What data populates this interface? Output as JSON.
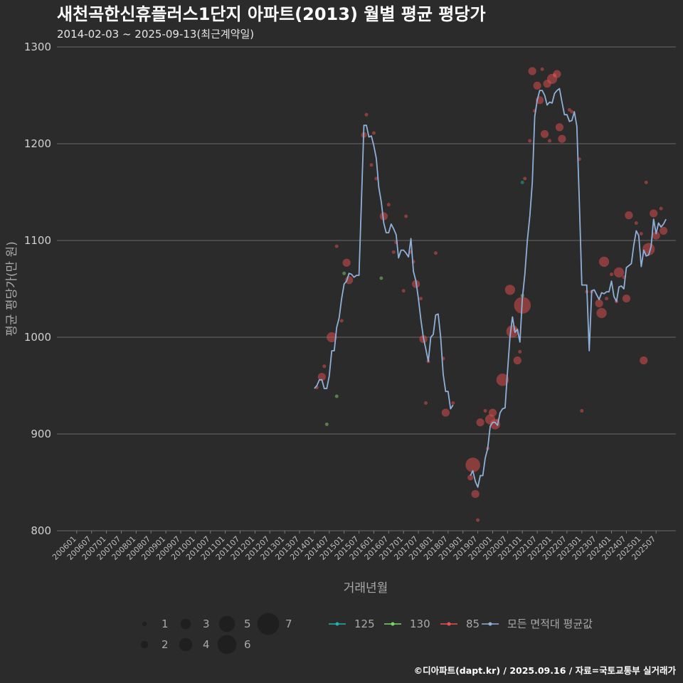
{
  "chart_data": {
    "type": "line",
    "title": "새천곡한신휴플러스1단지 아파트(2013) 월별 평균 평당가",
    "subtitle": "2014-02-03 ~ 2025-09-13(최근계약일)",
    "xlabel": "거래년월",
    "ylabel": "평균 평당가(만 원)",
    "ylim": [
      800,
      1300
    ],
    "yticks": [
      "800",
      "900",
      "1000",
      "1100",
      "1200",
      "1300"
    ],
    "xlim_months": [
      "2006-01",
      "2025-12"
    ],
    "xticks": [
      "200601",
      "200607",
      "200701",
      "200707",
      "200801",
      "200807",
      "200901",
      "200907",
      "201001",
      "201007",
      "201101",
      "201107",
      "201201",
      "201207",
      "201301",
      "201307",
      "201401",
      "201407",
      "201501",
      "201507",
      "201601",
      "201607",
      "201701",
      "201707",
      "201801",
      "201807",
      "201901",
      "201907",
      "202001",
      "202007",
      "202101",
      "202107",
      "202201",
      "202207",
      "202301",
      "202307",
      "202401",
      "202407",
      "202501",
      "202507"
    ],
    "grid": "horizontal",
    "legend_position": "bottom",
    "size_legend": [
      "1",
      "2",
      "3",
      "4",
      "5",
      "6",
      "7"
    ],
    "color_legend": [
      {
        "name": "125",
        "color": "#20b2aa"
      },
      {
        "name": "130",
        "color": "#7ed36a"
      },
      {
        "name": "85",
        "color": "#e8524f"
      },
      {
        "name": "모든 면적대 평균값",
        "color": "#8fb0d8"
      }
    ],
    "series": [
      {
        "name": "모든 면적대 평균값",
        "color": "#8fb0d8",
        "points": [
          [
            "2014-01",
            947
          ],
          [
            "2014-02",
            950
          ],
          [
            "2014-03",
            956
          ],
          [
            "2014-04",
            956
          ],
          [
            "2014-05",
            947
          ],
          [
            "2014-06",
            947
          ],
          [
            "2014-07",
            960
          ],
          [
            "2014-08",
            986
          ],
          [
            "2014-09",
            986
          ],
          [
            "2014-10",
            1010
          ],
          [
            "2014-11",
            1020
          ],
          [
            "2014-12",
            1040
          ],
          [
            "2015-01",
            1055
          ],
          [
            "2015-02",
            1058
          ],
          [
            "2015-03",
            1066
          ],
          [
            "2015-04",
            1065
          ],
          [
            "2015-05",
            1062
          ],
          [
            "2015-06",
            1064
          ],
          [
            "2015-07",
            1064
          ],
          [
            "2015-08",
            1140
          ],
          [
            "2015-09",
            1219
          ],
          [
            "2015-10",
            1219
          ],
          [
            "2015-11",
            1207
          ],
          [
            "2015-12",
            1208
          ],
          [
            "2016-01",
            1198
          ],
          [
            "2016-02",
            1185
          ],
          [
            "2016-03",
            1155
          ],
          [
            "2016-04",
            1140
          ],
          [
            "2016-05",
            1118
          ],
          [
            "2016-06",
            1108
          ],
          [
            "2016-07",
            1108
          ],
          [
            "2016-08",
            1117
          ],
          [
            "2016-09",
            1112
          ],
          [
            "2016-10",
            1106
          ],
          [
            "2016-11",
            1082
          ],
          [
            "2016-12",
            1090
          ],
          [
            "2017-01",
            1090
          ],
          [
            "2017-02",
            1087
          ],
          [
            "2017-03",
            1083
          ],
          [
            "2017-04",
            1102
          ],
          [
            "2017-05",
            1068
          ],
          [
            "2017-06",
            1058
          ],
          [
            "2017-07",
            1040
          ],
          [
            "2017-08",
            1018
          ],
          [
            "2017-09",
            1000
          ],
          [
            "2017-10",
            988
          ],
          [
            "2017-11",
            975
          ],
          [
            "2017-12",
            1000
          ],
          [
            "2018-01",
            1003
          ],
          [
            "2018-02",
            1023
          ],
          [
            "2018-03",
            1024
          ],
          [
            "2018-04",
            1000
          ],
          [
            "2018-05",
            962
          ],
          [
            "2018-06",
            944
          ],
          [
            "2018-07",
            944
          ],
          [
            "2018-08",
            926
          ],
          [
            "2018-09",
            930
          ],
          [
            "2019-04",
            857
          ],
          [
            "2019-05",
            862
          ],
          [
            "2019-06",
            851
          ],
          [
            "2019-07",
            845
          ],
          [
            "2019-08",
            857
          ],
          [
            "2019-09",
            857
          ],
          [
            "2019-10",
            875
          ],
          [
            "2019-11",
            885
          ],
          [
            "2019-12",
            908
          ],
          [
            "2020-01",
            912
          ],
          [
            "2020-02",
            912
          ],
          [
            "2020-03",
            909
          ],
          [
            "2020-04",
            922
          ],
          [
            "2020-05",
            926
          ],
          [
            "2020-06",
            927
          ],
          [
            "2020-07",
            965
          ],
          [
            "2020-08",
            1000
          ],
          [
            "2020-09",
            1021
          ],
          [
            "2020-10",
            1005
          ],
          [
            "2020-11",
            1008
          ],
          [
            "2020-12",
            995
          ],
          [
            "2021-01",
            1040
          ],
          [
            "2021-02",
            1065
          ],
          [
            "2021-03",
            1100
          ],
          [
            "2021-04",
            1125
          ],
          [
            "2021-05",
            1160
          ],
          [
            "2021-06",
            1228
          ],
          [
            "2021-07",
            1245
          ],
          [
            "2021-08",
            1255
          ],
          [
            "2021-09",
            1255
          ],
          [
            "2021-10",
            1250
          ],
          [
            "2021-11",
            1240
          ],
          [
            "2021-12",
            1243
          ],
          [
            "2022-01",
            1242
          ],
          [
            "2022-02",
            1252
          ],
          [
            "2022-03",
            1255
          ],
          [
            "2022-04",
            1257
          ],
          [
            "2022-05",
            1243
          ],
          [
            "2022-06",
            1230
          ],
          [
            "2022-07",
            1230
          ],
          [
            "2022-08",
            1223
          ],
          [
            "2022-09",
            1224
          ],
          [
            "2022-10",
            1233
          ],
          [
            "2022-11",
            1218
          ],
          [
            "2022-12",
            1140
          ],
          [
            "2023-01",
            1054
          ],
          [
            "2023-02",
            1054
          ],
          [
            "2023-03",
            1054
          ],
          [
            "2023-04",
            986
          ],
          [
            "2023-05",
            1048
          ],
          [
            "2023-06",
            1049
          ],
          [
            "2023-07",
            1044
          ],
          [
            "2023-08",
            1039
          ],
          [
            "2023-09",
            1046
          ],
          [
            "2023-10",
            1045
          ],
          [
            "2023-11",
            1047
          ],
          [
            "2023-12",
            1047
          ],
          [
            "2024-01",
            1058
          ],
          [
            "2024-02",
            1042
          ],
          [
            "2024-03",
            1037
          ],
          [
            "2024-04",
            1052
          ],
          [
            "2024-05",
            1053
          ],
          [
            "2024-06",
            1050
          ],
          [
            "2024-07",
            1072
          ],
          [
            "2024-08",
            1074
          ],
          [
            "2024-09",
            1076
          ],
          [
            "2024-10",
            1095
          ],
          [
            "2024-11",
            1110
          ],
          [
            "2024-12",
            1105
          ],
          [
            "2025-01",
            1073
          ],
          [
            "2025-02",
            1090
          ],
          [
            "2025-03",
            1084
          ],
          [
            "2025-04",
            1085
          ],
          [
            "2025-05",
            1094
          ],
          [
            "2025-06",
            1122
          ],
          [
            "2025-07",
            1107
          ],
          [
            "2025-08",
            1118
          ],
          [
            "2025-09",
            1114
          ],
          [
            "2025-10",
            1117
          ],
          [
            "2025-11",
            1122
          ]
        ]
      }
    ],
    "bubbles": [
      {
        "x": "2014-02",
        "y": 948,
        "s": 1,
        "g": "85"
      },
      {
        "x": "2014-04",
        "y": 959,
        "s": 3,
        "g": "85"
      },
      {
        "x": "2014-05",
        "y": 970,
        "s": 1,
        "g": "85"
      },
      {
        "x": "2014-06",
        "y": 910,
        "s": 1,
        "g": "130"
      },
      {
        "x": "2014-08",
        "y": 1000,
        "s": 4,
        "g": "85"
      },
      {
        "x": "2014-10",
        "y": 939,
        "s": 1,
        "g": "130"
      },
      {
        "x": "2014-10",
        "y": 1094,
        "s": 1,
        "g": "85"
      },
      {
        "x": "2014-12",
        "y": 1017,
        "s": 1,
        "g": "85"
      },
      {
        "x": "2015-01",
        "y": 1066,
        "s": 1,
        "g": "130"
      },
      {
        "x": "2015-02",
        "y": 1077,
        "s": 3,
        "g": "85"
      },
      {
        "x": "2015-03",
        "y": 1059,
        "s": 3,
        "g": "85"
      },
      {
        "x": "2015-09",
        "y": 1209,
        "s": 2,
        "g": "85"
      },
      {
        "x": "2015-10",
        "y": 1230,
        "s": 1,
        "g": "85"
      },
      {
        "x": "2015-12",
        "y": 1178,
        "s": 1,
        "g": "85"
      },
      {
        "x": "2016-01",
        "y": 1211,
        "s": 1,
        "g": "85"
      },
      {
        "x": "2016-02",
        "y": 1164,
        "s": 1,
        "g": "85"
      },
      {
        "x": "2016-04",
        "y": 1061,
        "s": 1,
        "g": "130"
      },
      {
        "x": "2016-05",
        "y": 1125,
        "s": 3,
        "g": "85"
      },
      {
        "x": "2016-07",
        "y": 1137,
        "s": 1,
        "g": "85"
      },
      {
        "x": "2016-09",
        "y": 1088,
        "s": 1,
        "g": "85"
      },
      {
        "x": "2016-10",
        "y": 1098,
        "s": 1,
        "g": "85"
      },
      {
        "x": "2017-01",
        "y": 1048,
        "s": 1,
        "g": "85"
      },
      {
        "x": "2017-02",
        "y": 1125,
        "s": 1,
        "g": "85"
      },
      {
        "x": "2017-04",
        "y": 1088,
        "s": 1,
        "g": "85"
      },
      {
        "x": "2017-05",
        "y": 1078,
        "s": 1,
        "g": "85"
      },
      {
        "x": "2017-06",
        "y": 1055,
        "s": 3,
        "g": "85"
      },
      {
        "x": "2017-08",
        "y": 1040,
        "s": 1,
        "g": "85"
      },
      {
        "x": "2017-09",
        "y": 998,
        "s": 3,
        "g": "85"
      },
      {
        "x": "2017-10",
        "y": 932,
        "s": 1,
        "g": "85"
      },
      {
        "x": "2017-11",
        "y": 975,
        "s": 1,
        "g": "85"
      },
      {
        "x": "2018-02",
        "y": 1087,
        "s": 1,
        "g": "85"
      },
      {
        "x": "2018-05",
        "y": 978,
        "s": 1,
        "g": "85"
      },
      {
        "x": "2018-06",
        "y": 922,
        "s": 3,
        "g": "85"
      },
      {
        "x": "2018-09",
        "y": 932,
        "s": 1,
        "g": "85"
      },
      {
        "x": "2019-04",
        "y": 855,
        "s": 2,
        "g": "85"
      },
      {
        "x": "2019-05",
        "y": 868,
        "s": 6,
        "g": "85"
      },
      {
        "x": "2019-06",
        "y": 838,
        "s": 3,
        "g": "85"
      },
      {
        "x": "2019-07",
        "y": 811,
        "s": 1,
        "g": "85"
      },
      {
        "x": "2019-08",
        "y": 912,
        "s": 3,
        "g": "85"
      },
      {
        "x": "2019-10",
        "y": 924,
        "s": 1,
        "g": "85"
      },
      {
        "x": "2019-11",
        "y": 885,
        "s": 1,
        "g": "85"
      },
      {
        "x": "2019-12",
        "y": 915,
        "s": 4,
        "g": "85"
      },
      {
        "x": "2020-01",
        "y": 922,
        "s": 3,
        "g": "85"
      },
      {
        "x": "2020-02",
        "y": 910,
        "s": 4,
        "g": "85"
      },
      {
        "x": "2020-03",
        "y": 914,
        "s": 1,
        "g": "85"
      },
      {
        "x": "2020-05",
        "y": 956,
        "s": 5,
        "g": "85"
      },
      {
        "x": "2020-08",
        "y": 1049,
        "s": 4,
        "g": "85"
      },
      {
        "x": "2020-09",
        "y": 1006,
        "s": 5,
        "g": "85"
      },
      {
        "x": "2020-10",
        "y": 1008,
        "s": 1,
        "g": "85"
      },
      {
        "x": "2020-11",
        "y": 976,
        "s": 3,
        "g": "85"
      },
      {
        "x": "2020-12",
        "y": 985,
        "s": 1,
        "g": "85"
      },
      {
        "x": "2021-01",
        "y": 1033,
        "s": 7,
        "g": "85"
      },
      {
        "x": "2021-01",
        "y": 1043,
        "s": 1,
        "g": "130"
      },
      {
        "x": "2021-01",
        "y": 1160,
        "s": 1,
        "g": "125"
      },
      {
        "x": "2021-02",
        "y": 1164,
        "s": 1,
        "g": "85"
      },
      {
        "x": "2021-04",
        "y": 1203,
        "s": 1,
        "g": "85"
      },
      {
        "x": "2021-05",
        "y": 1275,
        "s": 3,
        "g": "85"
      },
      {
        "x": "2021-06",
        "y": 1234,
        "s": 1,
        "g": "85"
      },
      {
        "x": "2021-07",
        "y": 1260,
        "s": 3,
        "g": "85"
      },
      {
        "x": "2021-08",
        "y": 1245,
        "s": 3,
        "g": "85"
      },
      {
        "x": "2021-09",
        "y": 1277,
        "s": 1,
        "g": "85"
      },
      {
        "x": "2021-10",
        "y": 1210,
        "s": 3,
        "g": "85"
      },
      {
        "x": "2021-11",
        "y": 1262,
        "s": 3,
        "g": "85"
      },
      {
        "x": "2021-12",
        "y": 1203,
        "s": 1,
        "g": "85"
      },
      {
        "x": "2022-01",
        "y": 1267,
        "s": 4,
        "g": "85"
      },
      {
        "x": "2022-02",
        "y": 1271,
        "s": 1,
        "g": "85"
      },
      {
        "x": "2022-03",
        "y": 1272,
        "s": 3,
        "g": "85"
      },
      {
        "x": "2022-04",
        "y": 1217,
        "s": 3,
        "g": "85"
      },
      {
        "x": "2022-05",
        "y": 1205,
        "s": 3,
        "g": "85"
      },
      {
        "x": "2022-08",
        "y": 1235,
        "s": 1,
        "g": "85"
      },
      {
        "x": "2022-09",
        "y": 1233,
        "s": 1,
        "g": "85"
      },
      {
        "x": "2022-12",
        "y": 1184,
        "s": 1,
        "g": "85"
      },
      {
        "x": "2023-01",
        "y": 924,
        "s": 1,
        "g": "85"
      },
      {
        "x": "2023-03",
        "y": 1047,
        "s": 1,
        "g": "85"
      },
      {
        "x": "2023-05",
        "y": 1047,
        "s": 1,
        "g": "85"
      },
      {
        "x": "2023-08",
        "y": 1035,
        "s": 3,
        "g": "85"
      },
      {
        "x": "2023-09",
        "y": 1025,
        "s": 4,
        "g": "85"
      },
      {
        "x": "2023-10",
        "y": 1078,
        "s": 4,
        "g": "85"
      },
      {
        "x": "2023-11",
        "y": 1040,
        "s": 1,
        "g": "85"
      },
      {
        "x": "2024-01",
        "y": 1065,
        "s": 1,
        "g": "85"
      },
      {
        "x": "2024-03",
        "y": 1037,
        "s": 1,
        "g": "85"
      },
      {
        "x": "2024-04",
        "y": 1067,
        "s": 4,
        "g": "85"
      },
      {
        "x": "2024-06",
        "y": 1062,
        "s": 1,
        "g": "85"
      },
      {
        "x": "2024-07",
        "y": 1040,
        "s": 3,
        "g": "85"
      },
      {
        "x": "2024-08",
        "y": 1126,
        "s": 3,
        "g": "85"
      },
      {
        "x": "2024-11",
        "y": 1118,
        "s": 1,
        "g": "85"
      },
      {
        "x": "2025-01",
        "y": 1107,
        "s": 1,
        "g": "85"
      },
      {
        "x": "2025-02",
        "y": 976,
        "s": 3,
        "g": "85"
      },
      {
        "x": "2025-03",
        "y": 1160,
        "s": 1,
        "g": "85"
      },
      {
        "x": "2025-04",
        "y": 1091,
        "s": 5,
        "g": "85"
      },
      {
        "x": "2025-06",
        "y": 1128,
        "s": 3,
        "g": "85"
      },
      {
        "x": "2025-07",
        "y": 1105,
        "s": 3,
        "g": "85"
      },
      {
        "x": "2025-09",
        "y": 1133,
        "s": 1,
        "g": "85"
      },
      {
        "x": "2025-10",
        "y": 1110,
        "s": 3,
        "g": "85"
      }
    ],
    "caption": "©디아파트(dapt.kr) / 2025.09.16 / 자료=국토교통부 실거래가"
  }
}
